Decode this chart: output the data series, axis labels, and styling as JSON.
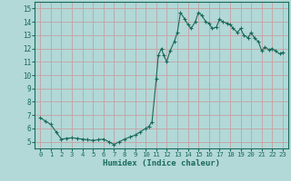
{
  "xlabel": "Humidex (Indice chaleur)",
  "bg_color": "#b2d8d8",
  "grid_color": "#c8a0a0",
  "line_color": "#1a6b5a",
  "marker_color": "#1a6b5a",
  "xlim": [
    -0.5,
    23.5
  ],
  "ylim": [
    4.5,
    15.5
  ],
  "yticks": [
    5,
    6,
    7,
    8,
    9,
    10,
    11,
    12,
    13,
    14,
    15
  ],
  "xticks": [
    0,
    1,
    2,
    3,
    4,
    5,
    6,
    7,
    8,
    9,
    10,
    11,
    12,
    13,
    14,
    15,
    16,
    17,
    18,
    19,
    20,
    21,
    22,
    23
  ],
  "x": [
    0,
    0.5,
    1,
    1.5,
    2,
    2.5,
    3,
    3.5,
    4,
    4.5,
    5,
    5.5,
    6,
    6.5,
    7,
    7.5,
    8,
    8.5,
    9,
    9.5,
    10,
    10.3,
    10.6,
    11,
    11.2,
    11.5,
    11.7,
    12,
    12.3,
    12.7,
    13,
    13.3,
    13.7,
    14,
    14.3,
    14.7,
    15,
    15.3,
    15.7,
    16,
    16.3,
    16.7,
    17,
    17.3,
    17.7,
    18,
    18.3,
    18.7,
    19,
    19.3,
    19.7,
    20,
    20.3,
    20.7,
    21,
    21.3,
    21.7,
    22,
    22.3,
    22.7,
    23
  ],
  "y": [
    6.8,
    6.55,
    6.3,
    5.75,
    5.2,
    5.25,
    5.3,
    5.25,
    5.2,
    5.15,
    5.1,
    5.15,
    5.2,
    5.0,
    4.8,
    5.0,
    5.2,
    5.35,
    5.5,
    5.75,
    6.0,
    6.15,
    6.5,
    9.7,
    11.5,
    12.0,
    11.5,
    11.0,
    11.8,
    12.5,
    13.2,
    14.7,
    14.2,
    13.8,
    13.5,
    14.0,
    14.7,
    14.5,
    14.0,
    13.9,
    13.5,
    13.6,
    14.2,
    14.0,
    13.9,
    13.8,
    13.5,
    13.2,
    13.5,
    13.0,
    12.8,
    13.2,
    12.8,
    12.5,
    11.8,
    12.1,
    11.9,
    12.0,
    11.8,
    11.6,
    11.7
  ]
}
